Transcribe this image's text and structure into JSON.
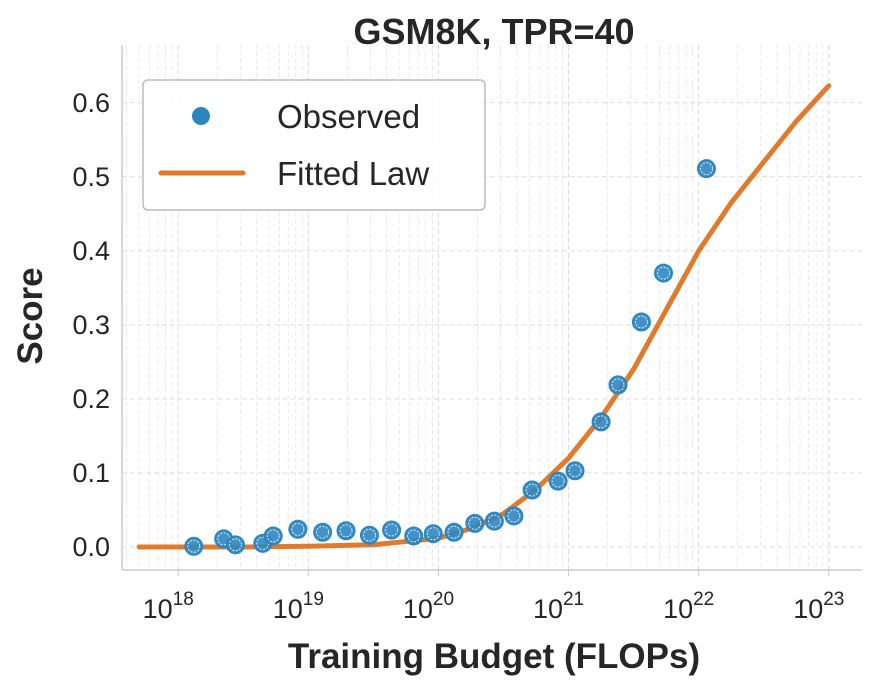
{
  "chart_data": {
    "type": "scatter",
    "title": "GSM8K, TPR=40",
    "xlabel": "Training Budget (FLOPs)",
    "ylabel": "Score",
    "xscale": "log",
    "xlim": [
      3.7e+17,
      1.8e+23
    ],
    "ylim": [
      -0.031,
      0.678
    ],
    "xticks": [
      {
        "exp": "18"
      },
      {
        "exp": "19"
      },
      {
        "exp": "20"
      },
      {
        "exp": "21"
      },
      {
        "exp": "22"
      },
      {
        "exp": "23"
      }
    ],
    "yticks": [
      "0.0",
      "0.1",
      "0.2",
      "0.3",
      "0.4",
      "0.5",
      "0.6"
    ],
    "grid": true,
    "legend": {
      "placement": "top-left",
      "entries": [
        "Observed",
        "Fitted Law"
      ]
    },
    "colors": {
      "observed": "#2e86c1",
      "fitted": "#e07b2e"
    },
    "series": [
      {
        "name": "Observed",
        "type": "scatter",
        "log10_x": [
          18.12,
          18.35,
          18.44,
          18.65,
          18.73,
          18.92,
          19.11,
          19.29,
          19.47,
          19.64,
          19.81,
          19.96,
          20.12,
          20.28,
          20.43,
          20.58,
          20.72,
          20.92,
          21.05,
          21.25,
          21.38,
          21.56,
          21.73,
          22.06
        ],
        "y": [
          0.001,
          0.011,
          0.003,
          0.005,
          0.015,
          0.024,
          0.02,
          0.022,
          0.016,
          0.023,
          0.015,
          0.018,
          0.02,
          0.032,
          0.035,
          0.042,
          0.077,
          0.089,
          0.103,
          0.169,
          0.219,
          0.304,
          0.37,
          0.511
        ]
      },
      {
        "name": "Fitted Law",
        "type": "line",
        "log10_x": [
          17.7,
          18.5,
          19,
          19.5,
          20,
          20.25,
          20.5,
          20.75,
          21,
          21.25,
          21.5,
          21.75,
          22,
          22.25,
          22.5,
          22.75,
          23
        ],
        "y": [
          0,
          0,
          0.001,
          0.003,
          0.012,
          0.025,
          0.045,
          0.078,
          0.12,
          0.175,
          0.24,
          0.32,
          0.4,
          0.465,
          0.52,
          0.575,
          0.623
        ]
      }
    ]
  }
}
